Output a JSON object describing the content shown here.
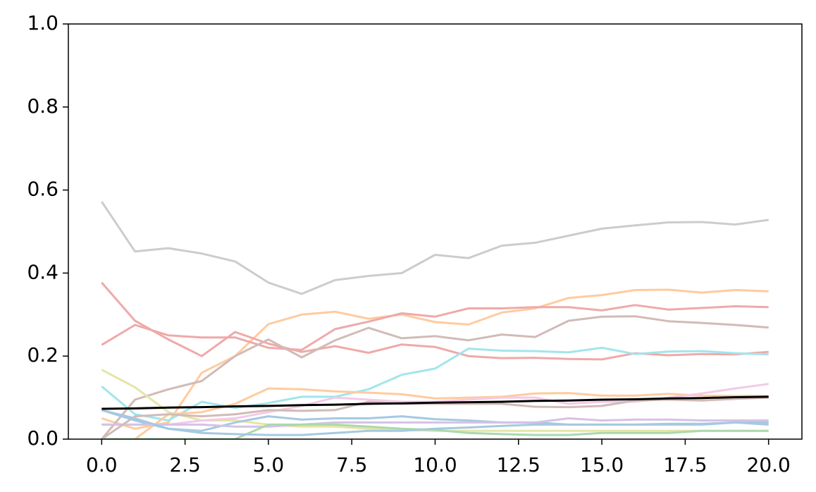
{
  "chart_data": {
    "type": "line",
    "x": [
      0,
      1,
      2,
      3,
      4,
      5,
      6,
      7,
      8,
      9,
      10,
      11,
      12,
      13,
      14,
      15,
      16,
      17,
      18,
      19,
      20
    ],
    "xlim": [
      -1,
      21
    ],
    "xticks": [
      {
        "value": 0,
        "label": "0.0"
      },
      2.5,
      {
        "value": 5,
        "label": "5.0"
      },
      7.5,
      {
        "value": 10,
        "label": "10.0"
      },
      12.5,
      {
        "value": 15,
        "label": "15.0"
      },
      17.5,
      {
        "value": 20,
        "label": "20.0"
      }
    ],
    "ylim": [
      0,
      1
    ],
    "yticks": [
      {
        "value": 0,
        "label": "0.0"
      },
      0.2,
      0.4,
      0.6,
      0.8,
      {
        "value": 1,
        "label": "1.0"
      }
    ],
    "series": [
      {
        "color": "#cccccc",
        "values": [
          0.572,
          0.452,
          0.46,
          0.447,
          0.428,
          0.377,
          0.35,
          0.383,
          0.393,
          0.4,
          0.444,
          0.436,
          0.466,
          0.473,
          0.49,
          0.507,
          0.515,
          0.522,
          0.523,
          0.517,
          0.528
        ]
      },
      {
        "color": "#ffcb9f",
        "values": [
          0.05,
          0.025,
          0.04,
          0.16,
          0.2,
          0.277,
          0.3,
          0.307,
          0.29,
          0.3,
          0.282,
          0.276,
          0.305,
          0.315,
          0.34,
          0.347,
          0.359,
          0.36,
          0.353,
          0.359,
          0.356
        ]
      },
      {
        "color": "#efa9a9",
        "values": [
          0.377,
          0.285,
          0.24,
          0.2,
          0.258,
          0.23,
          0.21,
          0.224,
          0.208,
          0.228,
          0.222,
          0.2,
          0.195,
          0.196,
          0.193,
          0.192,
          0.207,
          0.202,
          0.205,
          0.204,
          0.21
        ]
      },
      {
        "color": "#efa9a9",
        "values": [
          0.227,
          0.275,
          0.25,
          0.245,
          0.245,
          0.22,
          0.215,
          0.265,
          0.283,
          0.303,
          0.295,
          0.315,
          0.315,
          0.318,
          0.318,
          0.31,
          0.323,
          0.312,
          0.316,
          0.32,
          0.318
        ]
      },
      {
        "color": "#d1bbb7",
        "values": [
          0.0,
          0.095,
          0.12,
          0.14,
          0.2,
          0.24,
          0.197,
          0.238,
          0.268,
          0.243,
          0.248,
          0.238,
          0.252,
          0.246,
          0.285,
          0.295,
          0.296,
          0.284,
          0.28,
          0.275,
          0.269
        ]
      },
      {
        "color": "#a2e5ec",
        "values": [
          0.127,
          0.06,
          0.045,
          0.09,
          0.075,
          0.087,
          0.102,
          0.102,
          0.12,
          0.155,
          0.17,
          0.218,
          0.213,
          0.212,
          0.209,
          0.22,
          0.205,
          0.211,
          0.212,
          0.207,
          0.204
        ]
      },
      {
        "color": "#ffcb9f",
        "values": [
          0.0,
          0.0,
          0.06,
          0.065,
          0.085,
          0.122,
          0.12,
          0.115,
          0.112,
          0.108,
          0.098,
          0.1,
          0.102,
          0.11,
          0.111,
          0.105,
          0.105,
          0.109,
          0.105,
          0.104,
          0.104
        ]
      },
      {
        "color": "#e4e5a7",
        "values": [
          0.167,
          0.125,
          0.065,
          0.045,
          0.045,
          0.035,
          0.03,
          0.03,
          0.025,
          0.022,
          0.02,
          0.02,
          0.02,
          0.02,
          0.02,
          0.02,
          0.02,
          0.02,
          0.02,
          0.02,
          0.02
        ]
      },
      {
        "color": "#f4c9e7",
        "values": [
          0.035,
          0.035,
          0.035,
          0.045,
          0.05,
          0.065,
          0.08,
          0.1,
          0.095,
          0.09,
          0.09,
          0.095,
          0.1,
          0.1,
          0.085,
          0.09,
          0.09,
          0.1,
          0.11,
          0.122,
          0.133
        ]
      },
      {
        "color": "#a5c9e1",
        "values": [
          0.07,
          0.045,
          0.025,
          0.02,
          0.04,
          0.055,
          0.047,
          0.05,
          0.05,
          0.055,
          0.048,
          0.045,
          0.04,
          0.04,
          0.035,
          0.035,
          0.035,
          0.035,
          0.035,
          0.04,
          0.04
        ]
      },
      {
        "color": "#d4c2e5",
        "values": [
          0.035,
          0.035,
          0.035,
          0.035,
          0.03,
          0.03,
          0.035,
          0.04,
          0.04,
          0.04,
          0.04,
          0.04,
          0.04,
          0.04,
          0.05,
          0.045,
          0.047,
          0.047,
          0.045,
          0.045,
          0.045
        ]
      },
      {
        "color": "#abd9ab",
        "values": [
          0.0,
          0.0,
          0.0,
          0.0,
          0.0,
          0.035,
          0.035,
          0.035,
          0.03,
          0.025,
          0.022,
          0.015,
          0.012,
          0.01,
          0.01,
          0.015,
          0.015,
          0.015,
          0.02,
          0.02,
          0.02
        ]
      },
      {
        "color": "#d1bbb7",
        "values": [
          0.0,
          0.055,
          0.06,
          0.055,
          0.06,
          0.07,
          0.068,
          0.07,
          0.09,
          0.085,
          0.085,
          0.085,
          0.085,
          0.078,
          0.077,
          0.08,
          0.093,
          0.095,
          0.093,
          0.097,
          0.1
        ]
      },
      {
        "color": "#a5c9e1",
        "values": [
          0.07,
          0.05,
          0.025,
          0.015,
          0.012,
          0.01,
          0.01,
          0.015,
          0.02,
          0.02,
          0.025,
          0.028,
          0.032,
          0.035,
          0.035,
          0.035,
          0.035,
          0.037,
          0.037,
          0.04,
          0.035
        ]
      },
      {
        "color": "#000000",
        "values": [
          0.073,
          0.074,
          0.076,
          0.077,
          0.079,
          0.08,
          0.082,
          0.083,
          0.085,
          0.086,
          0.088,
          0.089,
          0.09,
          0.092,
          0.093,
          0.095,
          0.096,
          0.098,
          0.099,
          0.101,
          0.102
        ]
      }
    ]
  }
}
